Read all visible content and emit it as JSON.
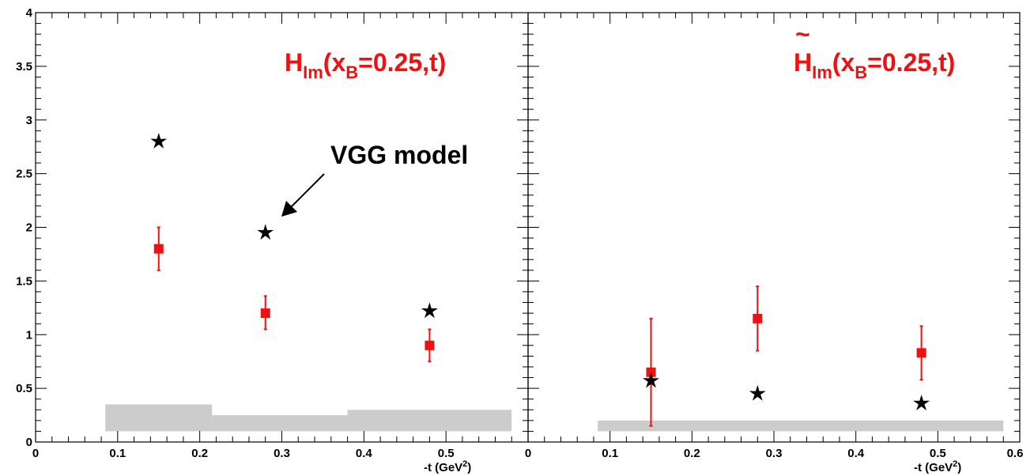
{
  "chart_data": [
    {
      "type": "scatter",
      "panel": "left",
      "title_main": "H",
      "title_sub": "Im",
      "title_open": "(x",
      "title_sub2": "B",
      "title_rest": "=0.25,t)",
      "xlabel_main": "-t (GeV",
      "xlabel_sup": "2",
      "xlabel_close": ")",
      "xlim": [
        0,
        0.6
      ],
      "ylim": [
        0,
        4
      ],
      "xticks": [
        "0",
        "0.1",
        "0.2",
        "0.3",
        "0.4",
        "0.5"
      ],
      "yticks": [
        "0",
        "0.5",
        "1",
        "1.5",
        "2",
        "2.5",
        "3",
        "3.5",
        "4"
      ],
      "series": [
        {
          "marker": "square",
          "color": "#ee1111",
          "x": [
            0.15,
            0.28,
            0.48
          ],
          "y": [
            1.8,
            1.2,
            0.9
          ],
          "err_low": [
            0.2,
            0.15,
            0.15
          ],
          "err_high": [
            0.2,
            0.16,
            0.15
          ]
        },
        {
          "marker": "star",
          "color": "#000000",
          "x": [
            0.15,
            0.28,
            0.48
          ],
          "y": [
            2.8,
            1.95,
            1.22
          ]
        }
      ],
      "systematic_bands": [
        {
          "x0": 0.085,
          "x1": 0.215,
          "y0": 0.1,
          "y1": 0.35
        },
        {
          "x0": 0.215,
          "x1": 0.38,
          "y0": 0.1,
          "y1": 0.25
        },
        {
          "x0": 0.38,
          "x1": 0.58,
          "y0": 0.1,
          "y1": 0.3
        }
      ],
      "annotation": {
        "text": "VGG model",
        "arrow_from": [
          0.35,
          2.5
        ],
        "arrow_to": [
          0.29,
          2.1
        ]
      }
    },
    {
      "type": "scatter",
      "panel": "right",
      "title_main": "H",
      "title_tilde": "~",
      "title_sub": "Im",
      "title_open": "(x",
      "title_sub2": "B",
      "title_rest": "=0.25,t)",
      "xlabel_main": "-t (GeV",
      "xlabel_sup": "2",
      "xlabel_close": ")",
      "xlim": [
        0,
        0.6
      ],
      "ylim": [
        0,
        4
      ],
      "xticks": [
        "0",
        "0.1",
        "0.2",
        "0.3",
        "0.4",
        "0.5",
        "0.6"
      ],
      "series": [
        {
          "marker": "square",
          "color": "#ee1111",
          "x": [
            0.15,
            0.28,
            0.48
          ],
          "y": [
            0.65,
            1.15,
            0.83
          ],
          "err_low": [
            0.5,
            0.3,
            0.25
          ],
          "err_high": [
            0.5,
            0.3,
            0.25
          ]
        },
        {
          "marker": "star",
          "color": "#000000",
          "x": [
            0.15,
            0.28,
            0.48
          ],
          "y": [
            0.57,
            0.45,
            0.36
          ]
        }
      ],
      "systematic_bands": [
        {
          "x0": 0.085,
          "x1": 0.58,
          "y0": 0.1,
          "y1": 0.2
        }
      ]
    }
  ]
}
